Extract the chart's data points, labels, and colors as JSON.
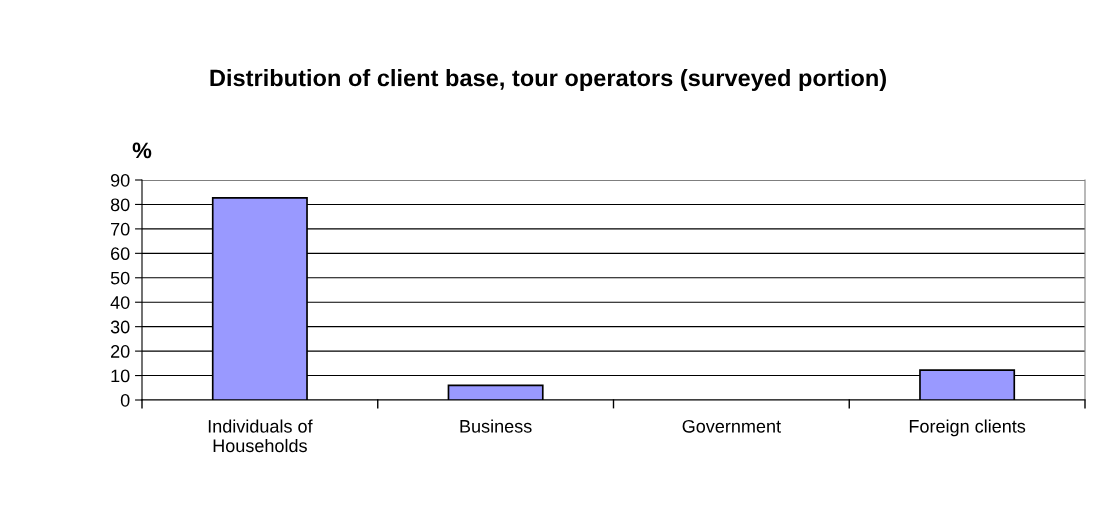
{
  "chart_data": {
    "type": "bar",
    "title": "Distribution of client base, tour operators (surveyed portion)",
    "ylabel": "%",
    "categories": [
      "Individuals of\nHouseholds",
      "Business",
      "Government",
      "Foreign clients"
    ],
    "values": [
      82.7,
      6,
      0,
      12.2
    ],
    "color": "#9999ff",
    "ylim": [
      0,
      90
    ],
    "yticks": [
      0,
      10,
      20,
      30,
      40,
      50,
      60,
      70,
      80,
      90
    ],
    "grid": "y"
  }
}
